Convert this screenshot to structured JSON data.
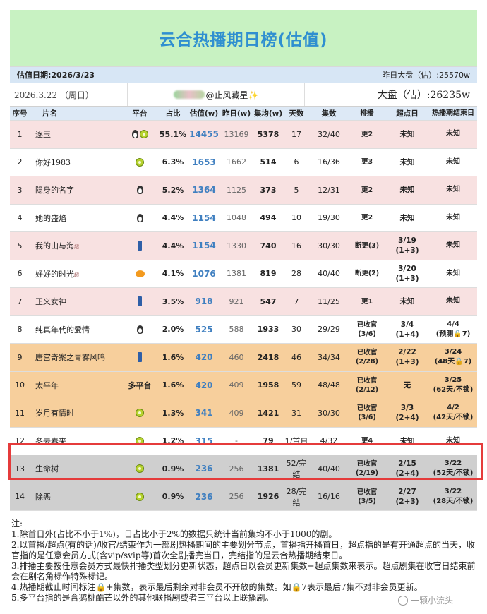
{
  "title": "云合热播期日榜(估值)",
  "date_bar": {
    "left": "估值日期:2026/3/23",
    "right": "昨日大盘（估）:25570w"
  },
  "info_bar": {
    "date": "2026.3.22 （周日）",
    "author": "@止风藏星✨",
    "market": "大盘（估）:26235w"
  },
  "headers": {
    "idx": "序号",
    "name": "片名",
    "platform": "平台",
    "share": "占比",
    "estimate": "估值(w)",
    "prev": "昨日(w)",
    "avg": "集均(w)",
    "days": "天数",
    "episodes": "集数",
    "schedule": "排播",
    "peak": "超点日",
    "end": "热播期结束日"
  },
  "rows": [
    {
      "idx": "1",
      "name": "逐玉",
      "tag": "",
      "platforms": [
        "penguin-icon",
        "iqiyi-icon"
      ],
      "share": "55.1%",
      "estimate": "14455",
      "prev": "13169",
      "avg": "5378",
      "days": "17",
      "episodes": "32/40",
      "schedule": "更2",
      "peak": "未知",
      "end": "未知",
      "bg": "pink"
    },
    {
      "idx": "2",
      "name": "你好1983",
      "tag": "",
      "platforms": [
        "iqiyi-icon"
      ],
      "share": "6.3%",
      "estimate": "1653",
      "prev": "1662",
      "avg": "514",
      "days": "6",
      "episodes": "16/36",
      "schedule": "更3",
      "peak": "未知",
      "end": "未知",
      "bg": "white"
    },
    {
      "idx": "3",
      "name": "隐身的名字",
      "tag": "",
      "platforms": [
        "penguin-icon"
      ],
      "share": "5.2%",
      "estimate": "1364",
      "prev": "1125",
      "avg": "373",
      "days": "5",
      "episodes": "12/31",
      "schedule": "更2",
      "peak": "未知",
      "end": "未知",
      "bg": "pink"
    },
    {
      "idx": "4",
      "name": "她的盛焰",
      "tag": "",
      "platforms": [
        "penguin-icon"
      ],
      "share": "4.4%",
      "estimate": "1154",
      "prev": "1048",
      "avg": "494",
      "days": "10",
      "episodes": "19/30",
      "schedule": "更2",
      "peak": "未知",
      "end": "未知",
      "bg": "white"
    },
    {
      "idx": "5",
      "name": "我的山与海",
      "tag": "超",
      "platforms": [
        "youku-icon"
      ],
      "share": "4.4%",
      "estimate": "1154",
      "prev": "1330",
      "avg": "740",
      "days": "16",
      "episodes": "30/30",
      "schedule": "断更(3)",
      "peak": "3/19\n(1+3)",
      "end": "未知",
      "bg": "pink"
    },
    {
      "idx": "6",
      "name": "好好的时光",
      "tag": "超",
      "platforms": [
        "mango-icon"
      ],
      "share": "4.1%",
      "estimate": "1076",
      "prev": "1381",
      "avg": "819",
      "days": "28",
      "episodes": "40/40",
      "schedule": "断更(2)",
      "peak": "3/20\n(1+3)",
      "end": "未知",
      "bg": "white"
    },
    {
      "idx": "7",
      "name": "正义女神",
      "tag": "",
      "platforms": [
        "youku-icon"
      ],
      "share": "3.5%",
      "estimate": "918",
      "prev": "921",
      "avg": "547",
      "days": "7",
      "episodes": "11/25",
      "schedule": "更1",
      "peak": "未知",
      "end": "未知",
      "bg": "pink"
    },
    {
      "idx": "8",
      "name": "纯真年代的爱情",
      "tag": "",
      "platforms": [
        "penguin-icon"
      ],
      "share": "2.0%",
      "estimate": "525",
      "prev": "588",
      "avg": "1933",
      "days": "30",
      "episodes": "29/29",
      "schedule": "已收官\n(3/6)",
      "peak": "3/4\n(1+4)",
      "end": "4/4\n(预测🔒7)",
      "bg": "white"
    },
    {
      "idx": "9",
      "name": "唐宫奇案之青雾风鸣",
      "tag": "",
      "platforms": [
        "youku-icon"
      ],
      "share": "1.6%",
      "estimate": "420",
      "prev": "460",
      "avg": "2418",
      "days": "46",
      "episodes": "34/34",
      "schedule": "已收官\n(2/28)",
      "peak": "2/22\n(1+3)",
      "end": "3/24\n(48天🔒7)",
      "bg": "orange"
    },
    {
      "idx": "10",
      "name": "太平年",
      "tag": "",
      "platforms": [
        "多平台"
      ],
      "share": "1.6%",
      "estimate": "420",
      "prev": "409",
      "avg": "1958",
      "days": "59",
      "episodes": "48/48",
      "schedule": "已收官\n(2/12)",
      "peak": "无",
      "end": "3/25\n(62天/不锁)",
      "bg": "orange"
    },
    {
      "idx": "11",
      "name": "岁月有情时",
      "tag": "",
      "platforms": [
        "iqiyi-icon"
      ],
      "share": "1.3%",
      "estimate": "341",
      "prev": "409",
      "avg": "1421",
      "days": "31",
      "episodes": "30/30",
      "schedule": "已收官\n(3/6)",
      "peak": "3/3\n(2+4)",
      "end": "4/2\n(42天/不锁)",
      "bg": "orange"
    },
    {
      "idx": "12",
      "name": "冬去春来",
      "tag": "",
      "platforms": [
        "iqiyi-icon"
      ],
      "share": "1.2%",
      "estimate": "315",
      "prev": "-",
      "avg": "79",
      "days": "1/首日",
      "episodes": "4/32",
      "schedule": "更4",
      "peak": "未知",
      "end": "未知",
      "bg": "white"
    },
    {
      "idx": "13",
      "name": "生命树",
      "tag": "",
      "platforms": [
        "iqiyi-icon"
      ],
      "share": "0.9%",
      "estimate": "236",
      "prev": "256",
      "avg": "1381",
      "days": "52/完结",
      "episodes": "40/40",
      "schedule": "已收官\n(2/19)",
      "peak": "2/15\n(2+4)",
      "end": "3/22\n(52天/不锁)",
      "bg": "gray"
    },
    {
      "idx": "14",
      "name": "除恶",
      "tag": "",
      "platforms": [
        "iqiyi-icon"
      ],
      "share": "0.9%",
      "estimate": "236",
      "prev": "256",
      "avg": "1926",
      "days": "28/完结",
      "episodes": "16/16",
      "schedule": "已收官\n(3/5)",
      "peak": "2/27\n(2+3)",
      "end": "3/22\n(28天/不锁)",
      "bg": "gray"
    }
  ],
  "notes": [
    "注:",
    "1.除首日外(占比不小于1%)，日占比小于2%的数据只统计当前集均不小于1000的剧。",
    "2.以首播/超点(有的话)/收官/结束作为一部剧热播期间的主要划分节点，首播指开播首日，超点指的是有开通超点的当天，收官指的是任意会员方式(含vip/svip等)首次全剧播完当日，完结指的是云合热播期结束日。",
    "3.排播主要按任意会员方式最快排播类型划分更新状态，超点日以会员更新集数+超点集数来表示。超点剧集在收官日结束前会在剧名角标作特殊标记。",
    "4.热播期截止时间标注🔒+集数，表示最后剩余对非会员不开放的集数。如🔒7表示最后7集不对非会员更新。",
    "5.多平台指的是含鹅桃酷芒以外的其他联播剧或者三平台以上联播剧。"
  ],
  "watermark": "一颗小流头"
}
